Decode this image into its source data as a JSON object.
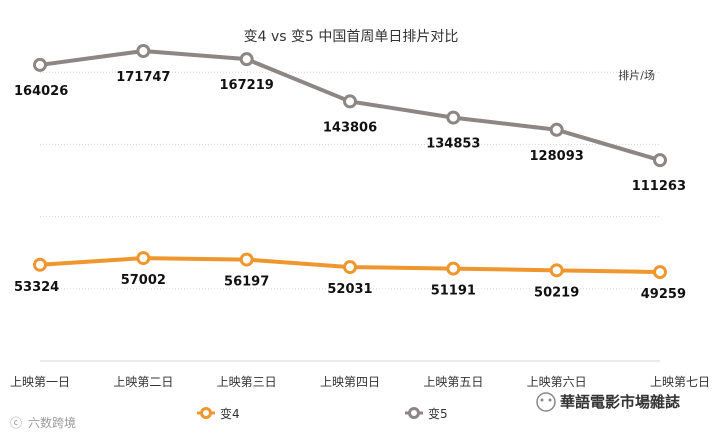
{
  "chart_data": {
    "type": "line",
    "title": "变4 vs 变5 中国首周单日排片对比",
    "ylabel": "排片/场",
    "xlabel": "",
    "categories": [
      "上映第一日",
      "上映第二日",
      "上映第三日",
      "上映第四日",
      "上映第五日",
      "上映第六日",
      "上映第七日"
    ],
    "ylim": [
      0,
      200000
    ],
    "grid": true,
    "legend_position": "bottom",
    "series": [
      {
        "name": "变4",
        "color": "#f0962e",
        "values": [
          53324,
          57002,
          56197,
          52031,
          51191,
          50219,
          49259
        ]
      },
      {
        "name": "变5",
        "color": "#8c8784",
        "values": [
          164026,
          171747,
          167219,
          143806,
          134853,
          128093,
          111263
        ]
      }
    ]
  },
  "watermarks": {
    "left": "六数跨境",
    "right": "華語電影市場雜誌"
  }
}
